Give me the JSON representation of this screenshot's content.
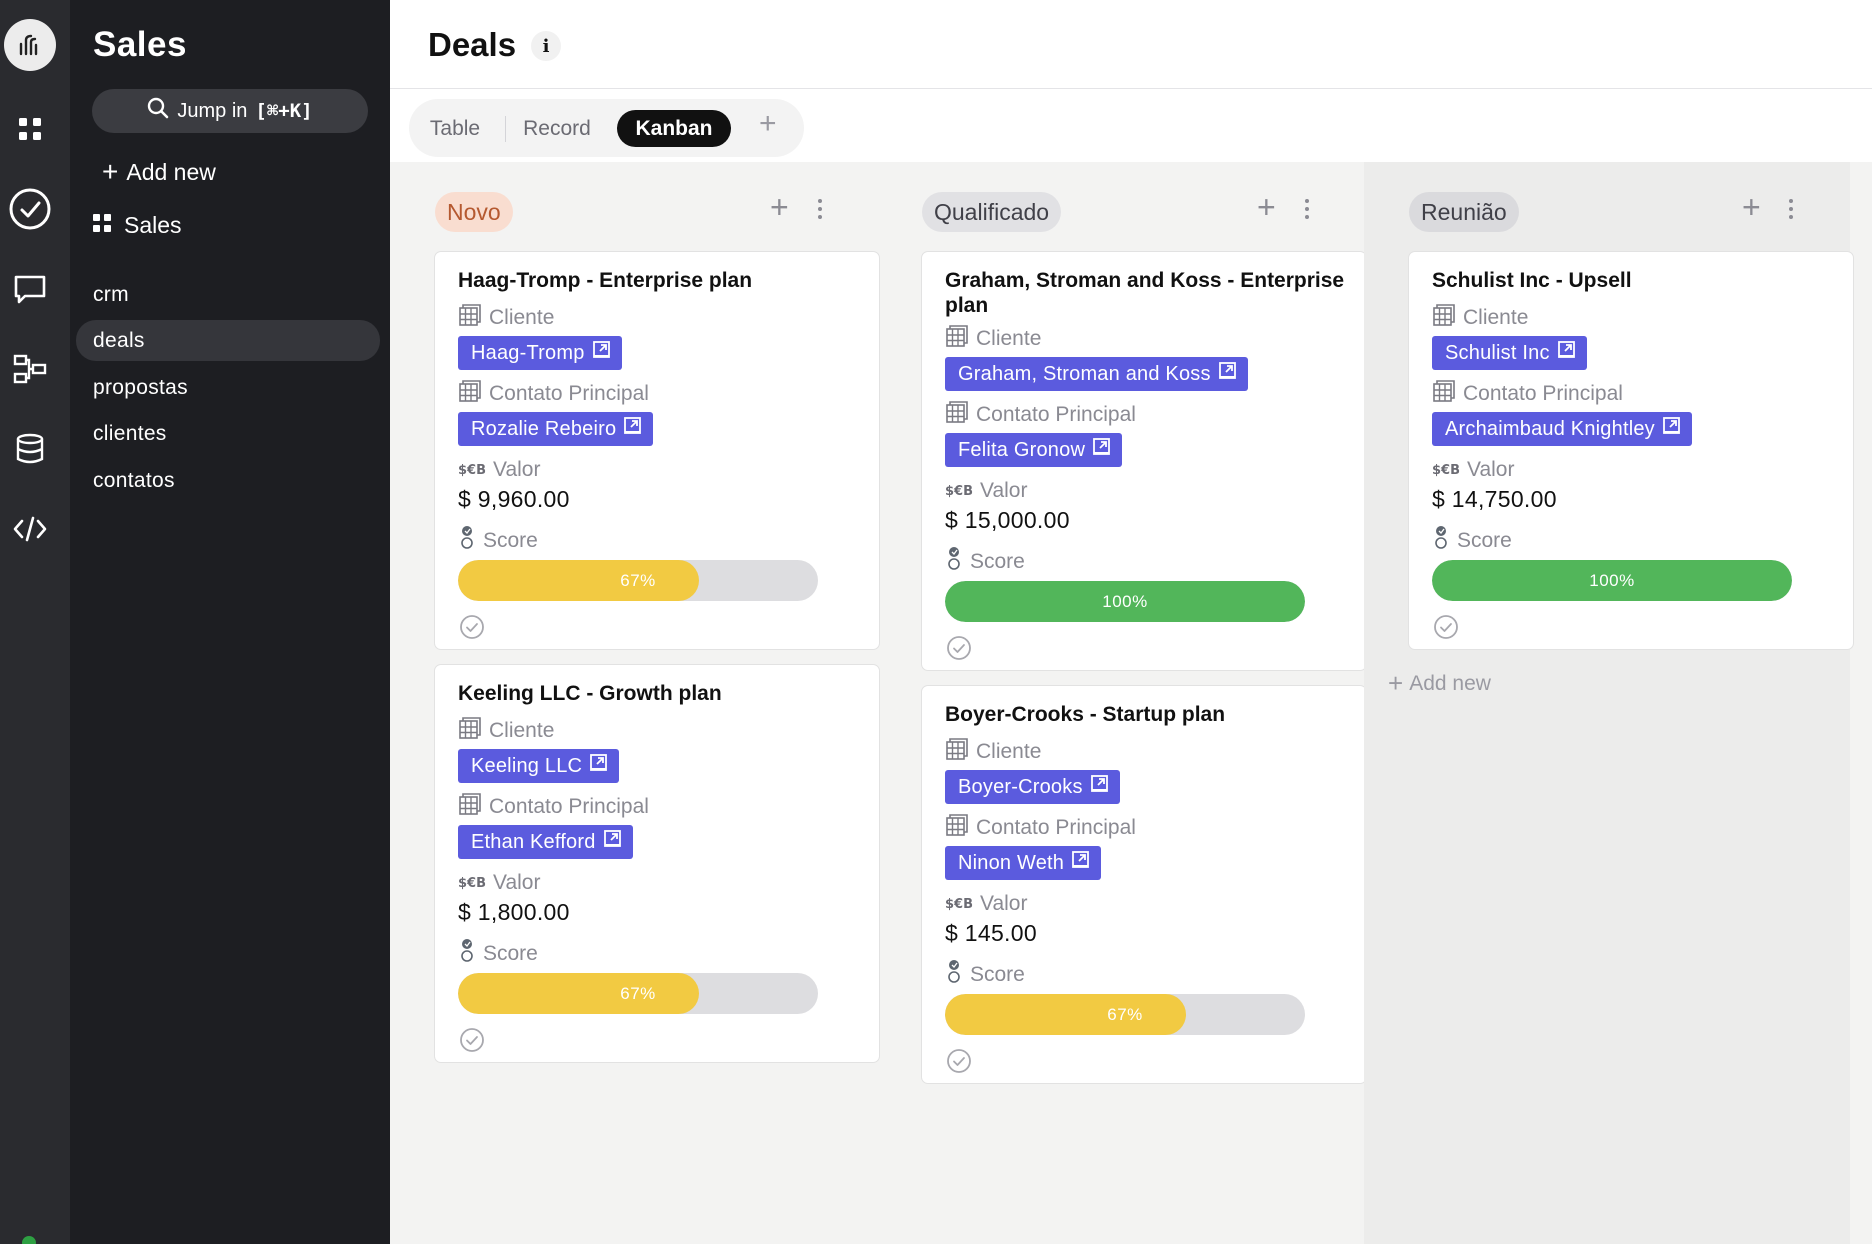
{
  "app": {
    "section_title": "Sales",
    "jump_label": "Jump in",
    "jump_shortcut": "[⌘+K]",
    "add_new_label": "Add new",
    "group_label": "Sales"
  },
  "rail": {
    "items": [
      "logo-icon",
      "apps-grid-icon",
      "tasks-check-icon",
      "chat-icon",
      "workflow-icon",
      "database-icon",
      "code-icon"
    ]
  },
  "sidebar": {
    "items": [
      {
        "label": "crm",
        "active": false
      },
      {
        "label": "deals",
        "active": true
      },
      {
        "label": "propostas",
        "active": false
      },
      {
        "label": "clientes",
        "active": false
      },
      {
        "label": "contatos",
        "active": false
      }
    ]
  },
  "header": {
    "title": "Deals",
    "info_icon": "i"
  },
  "views": {
    "tabs": [
      {
        "label": "Table",
        "active": false
      },
      {
        "label": "Record",
        "active": false
      },
      {
        "label": "Kanban",
        "active": true
      }
    ],
    "add_symbol": "+"
  },
  "fields": {
    "cliente": "Cliente",
    "contato": "Contato Principal",
    "valor": "Valor",
    "currency_icon": "$€B",
    "score": "Score"
  },
  "colors": {
    "tag_bg": "#5b5bde",
    "score_mid": "#f2ca42",
    "score_full": "#52b65a"
  },
  "board": {
    "columns": [
      {
        "name": "Novo",
        "pill_bg": "#f9ddd0",
        "pill_fg": "#b55930",
        "cards": [
          {
            "title": "Haag-Tromp - Enterprise plan",
            "cliente": "Haag-Tromp",
            "contato": "Rozalie Rebeiro",
            "valor": "$ 9,960.00",
            "score": 0.67,
            "score_label": "67%"
          },
          {
            "title": "Keeling LLC - Growth plan",
            "cliente": "Keeling LLC",
            "contato": "Ethan Kefford",
            "valor": "$ 1,800.00",
            "score": 0.67,
            "score_label": "67%"
          }
        ]
      },
      {
        "name": "Qualificado",
        "pill_bg": "#e1e1e4",
        "pill_fg": "#404048",
        "cards": [
          {
            "title": "Graham, Stroman and Koss - Enterprise plan",
            "cliente": "Graham, Stroman and Koss",
            "contato": "Felita Gronow",
            "valor": "$ 15,000.00",
            "score": 1.0,
            "score_label": "100%"
          },
          {
            "title": "Boyer-Crooks - Startup plan",
            "cliente": "Boyer-Crooks",
            "contato": "Ninon Weth",
            "valor": "$ 145.00",
            "score": 0.67,
            "score_label": "67%"
          }
        ]
      },
      {
        "name": "Reunião",
        "pill_bg": "#dadadd",
        "pill_fg": "#404048",
        "cards": [
          {
            "title": "Schulist Inc - Upsell",
            "cliente": "Schulist Inc",
            "contato": "Archaimbaud Knightley",
            "valor": "$ 14,750.00",
            "score": 1.0,
            "score_label": "100%"
          }
        ],
        "add_new": "Add new"
      }
    ]
  }
}
